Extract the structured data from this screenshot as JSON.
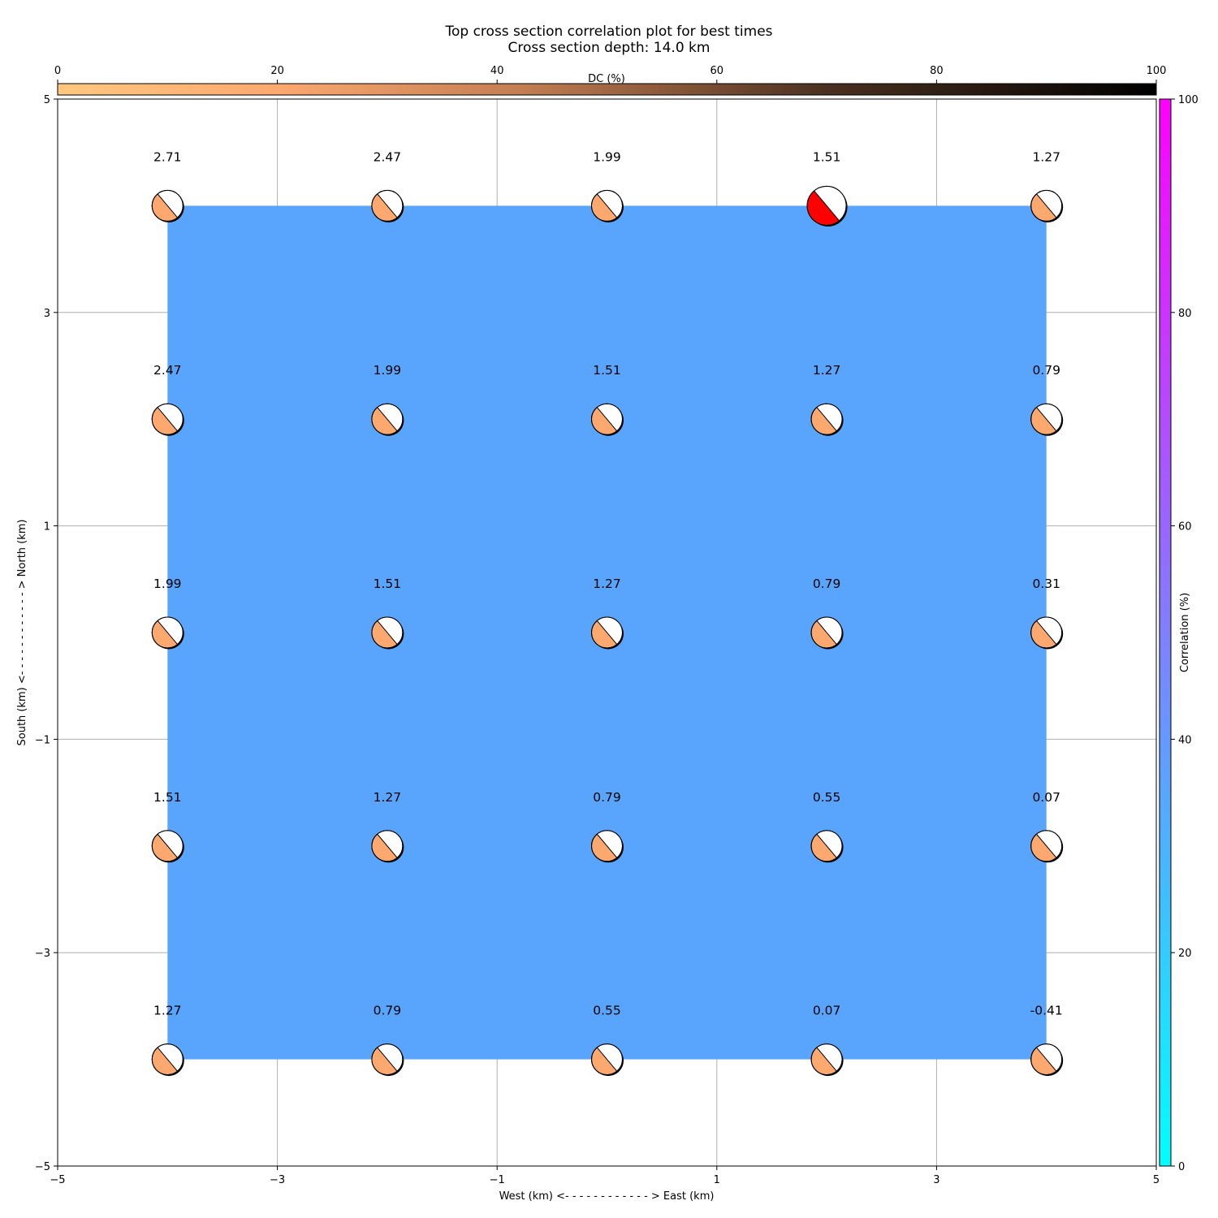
{
  "chart_data": {
    "type": "scatter",
    "title": "Top cross section correlation plot for best times",
    "subtitle": "Cross section depth: 14.0 km",
    "xlabel": "West (km) <- - - - - - - - - - - - > East (km)",
    "ylabel": "South (km) <- - - - - - - - - - - - > North (km)",
    "xlim": [
      -5,
      5
    ],
    "ylim": [
      -5,
      5
    ],
    "xticks": [
      -5,
      -3,
      -1,
      1,
      3,
      5
    ],
    "yticks": [
      -5,
      -3,
      -1,
      1,
      3,
      5
    ],
    "grid": true,
    "x": [
      -4,
      -2,
      0,
      2,
      4
    ],
    "y": [
      4,
      2,
      0,
      -2,
      -4
    ],
    "values": [
      [
        "2.71",
        "2.47",
        "1.99",
        "1.51",
        "1.27"
      ],
      [
        "2.47",
        "1.99",
        "1.51",
        "1.27",
        "0.79"
      ],
      [
        "1.99",
        "1.51",
        "1.27",
        "0.79",
        "0.31"
      ],
      [
        "1.51",
        "1.27",
        "0.79",
        "0.55",
        "0.07"
      ],
      [
        "1.27",
        "0.79",
        "0.55",
        "0.07",
        "-0.41"
      ]
    ],
    "correlation_region": {
      "x": [
        -4,
        4
      ],
      "y": [
        -4,
        4
      ],
      "correlation_percent": 40,
      "color": "#59a5fd"
    },
    "best_solution": {
      "x": 2,
      "y": 4,
      "color": "#ff0000"
    },
    "beachball_color": "#fda86e",
    "dc_colorbar": {
      "label": "DC (%)",
      "range": [
        0,
        100
      ],
      "ticks": [
        0,
        20,
        40,
        60,
        80,
        100
      ],
      "colors": [
        "#ffc87f",
        "#f09a62",
        "#8c5a3a",
        "#000000"
      ],
      "placement": "top"
    },
    "correlation_colorbar": {
      "label": "Correlation (%)",
      "range": [
        0,
        100
      ],
      "ticks": [
        0,
        20,
        40,
        60,
        80,
        100
      ],
      "colors": [
        "#00ffff",
        "#ff00ff"
      ],
      "placement": "right"
    }
  }
}
